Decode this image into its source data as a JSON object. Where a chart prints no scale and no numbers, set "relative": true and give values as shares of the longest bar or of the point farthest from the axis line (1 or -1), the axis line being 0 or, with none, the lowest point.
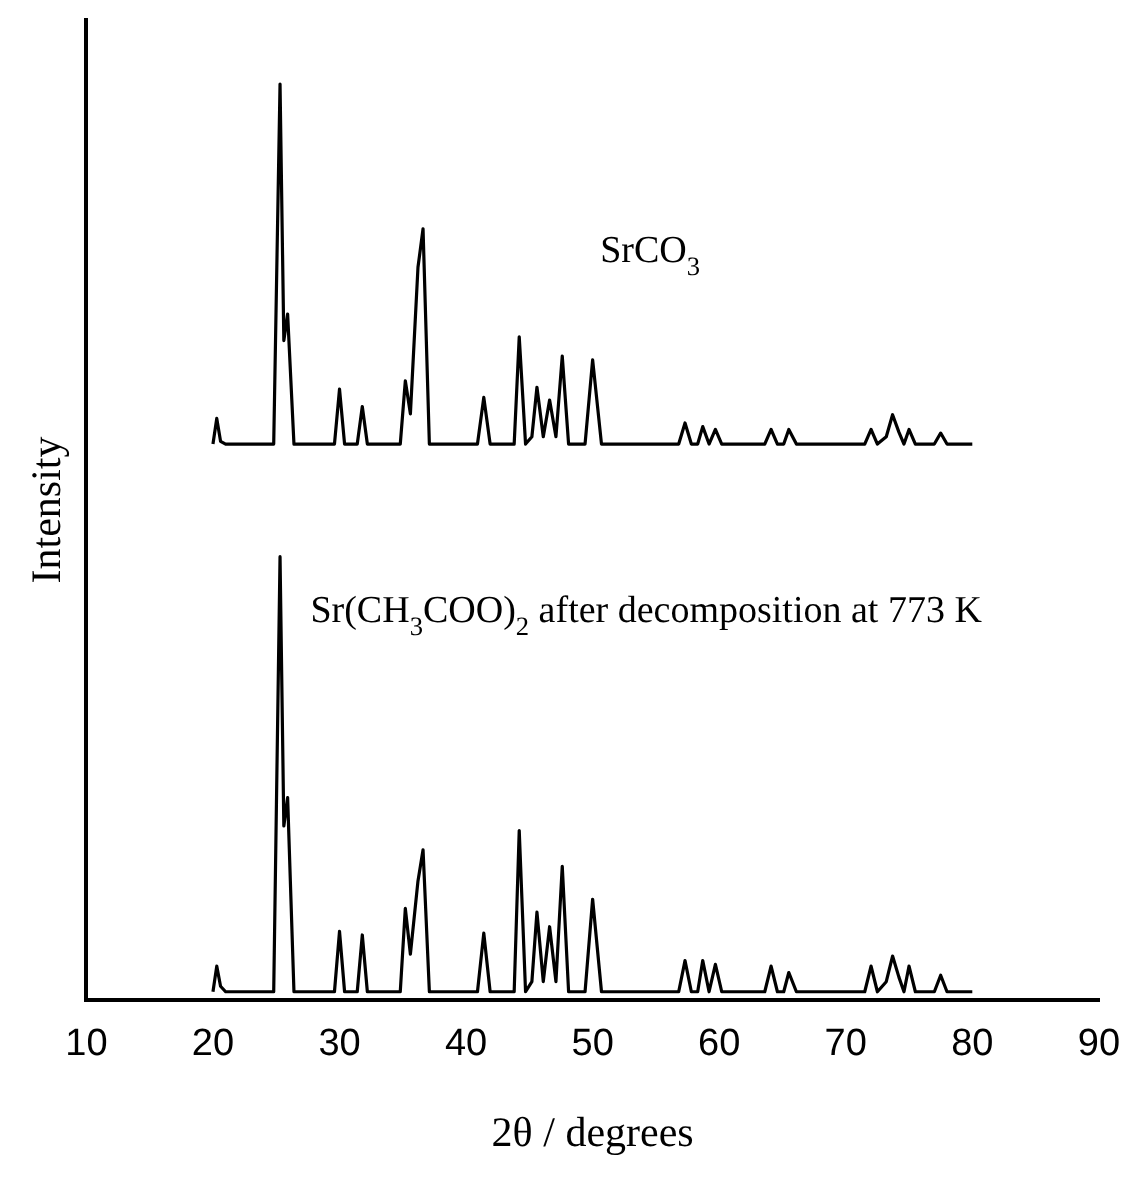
{
  "chart_data": {
    "type": "line",
    "relative": true,
    "xlabel": "2θ / degrees",
    "ylabel": "Intensity",
    "xlim": [
      10,
      90
    ],
    "xticks": [
      10,
      20,
      30,
      40,
      50,
      60,
      70,
      80,
      90
    ],
    "grid": false,
    "legend": false,
    "marker": "none",
    "line_style": "solid",
    "x": [
      20,
      20.3,
      20.6,
      21,
      24.8,
      25.3,
      25.6,
      25.9,
      26.4,
      29.6,
      30,
      30.4,
      31.4,
      31.8,
      32.2,
      34.8,
      35.2,
      35.6,
      36.2,
      36.6,
      37.1,
      40.9,
      41.4,
      41.9,
      43.8,
      44.2,
      44.7,
      45.2,
      45.6,
      46.1,
      46.6,
      47.1,
      47.6,
      48.1,
      49.4,
      50,
      50.7,
      56.8,
      57.3,
      57.8,
      58.3,
      58.7,
      59.2,
      59.7,
      60.2,
      63.6,
      64.1,
      64.6,
      65.1,
      65.5,
      66.1,
      71.5,
      72,
      72.5,
      73.2,
      73.7,
      74.2,
      74.6,
      75,
      75.5,
      77,
      77.5,
      78,
      80
    ],
    "series": [
      {
        "name": "SrCO$_{3}$",
        "color": "#000000",
        "values": [
          0.607,
          0.635,
          0.61,
          0.607,
          0.607,
          1.0,
          0.72,
          0.749,
          0.607,
          0.607,
          0.667,
          0.607,
          0.607,
          0.648,
          0.607,
          0.607,
          0.676,
          0.64,
          0.8,
          0.842,
          0.607,
          0.607,
          0.658,
          0.607,
          0.607,
          0.724,
          0.607,
          0.615,
          0.669,
          0.615,
          0.655,
          0.615,
          0.703,
          0.607,
          0.607,
          0.699,
          0.607,
          0.607,
          0.63,
          0.607,
          0.607,
          0.626,
          0.607,
          0.623,
          0.607,
          0.607,
          0.623,
          0.607,
          0.607,
          0.623,
          0.607,
          0.607,
          0.623,
          0.607,
          0.615,
          0.639,
          0.62,
          0.607,
          0.623,
          0.607,
          0.607,
          0.619,
          0.607,
          0.607
        ]
      },
      {
        "name": "Sr(CH$_{3}$COO)$_{2}$ after decomposition at 773 K",
        "color": "#000000",
        "values": [
          0.009,
          0.037,
          0.015,
          0.009,
          0.009,
          0.484,
          0.19,
          0.221,
          0.009,
          0.009,
          0.075,
          0.009,
          0.009,
          0.071,
          0.009,
          0.009,
          0.1,
          0.05,
          0.13,
          0.164,
          0.009,
          0.009,
          0.073,
          0.009,
          0.009,
          0.185,
          0.009,
          0.02,
          0.096,
          0.02,
          0.08,
          0.02,
          0.146,
          0.009,
          0.009,
          0.11,
          0.009,
          0.009,
          0.043,
          0.009,
          0.009,
          0.043,
          0.009,
          0.039,
          0.009,
          0.009,
          0.037,
          0.009,
          0.009,
          0.03,
          0.009,
          0.009,
          0.037,
          0.009,
          0.02,
          0.048,
          0.025,
          0.009,
          0.037,
          0.009,
          0.009,
          0.027,
          0.009,
          0.009
        ]
      }
    ]
  }
}
